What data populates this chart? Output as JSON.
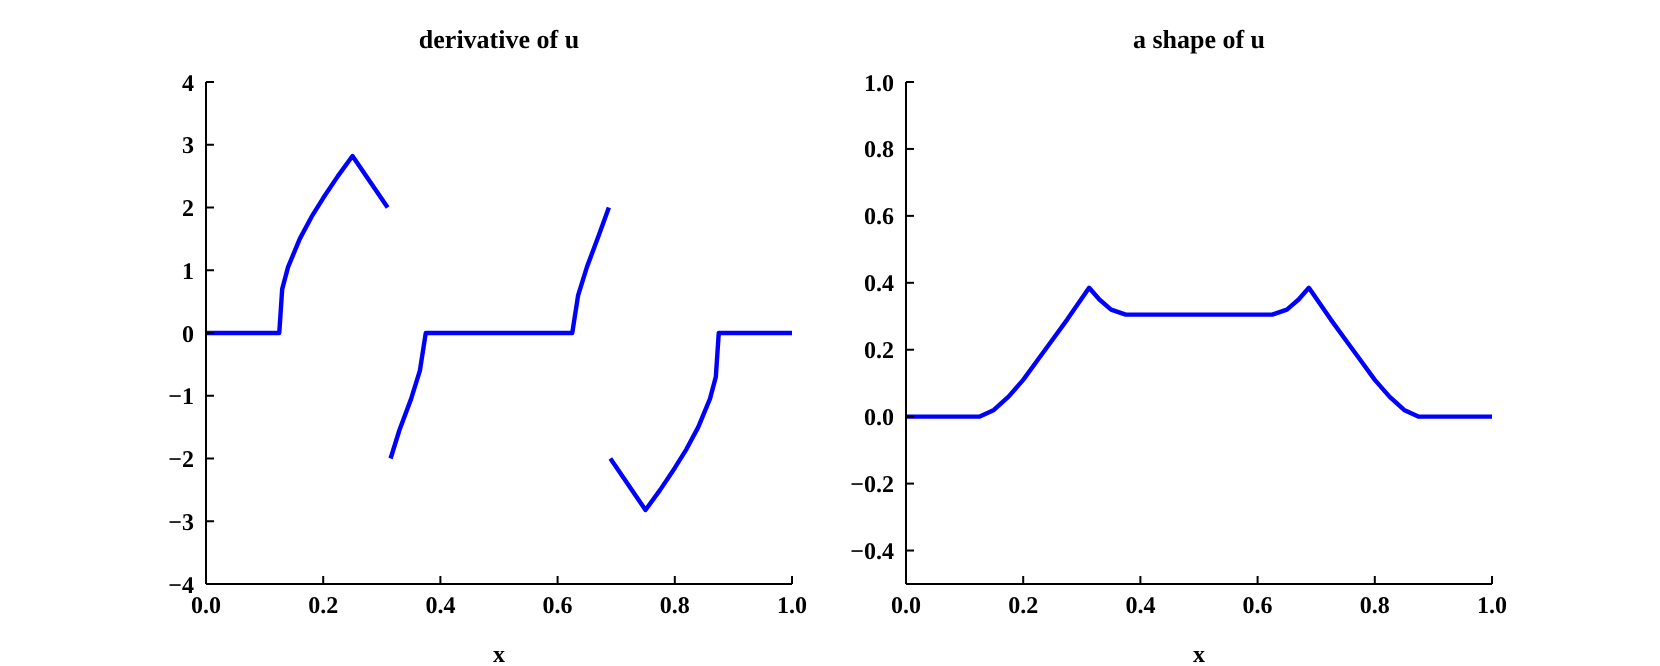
{
  "chart_data": [
    {
      "type": "line",
      "title": "derivative of u",
      "xlabel": "x",
      "xlim": [
        0,
        1
      ],
      "xticks": [
        {
          "value": 0,
          "label": "0.0"
        },
        {
          "value": 0.2,
          "label": "0.2"
        },
        {
          "value": 0.4,
          "label": "0.4"
        },
        {
          "value": 0.6,
          "label": "0.6"
        },
        {
          "value": 0.8,
          "label": "0.8"
        },
        {
          "value": 1,
          "label": "1.0"
        }
      ],
      "ylim": [
        -4,
        4
      ],
      "yticks": [
        -4,
        -3,
        -2,
        -1,
        0,
        1,
        2,
        3,
        4
      ],
      "grid": false,
      "legend": false,
      "marker": "none",
      "line_style": "solid",
      "series": [
        {
          "color": "#0000ff",
          "x": [
            0,
            0.125,
            0.13,
            0.14,
            0.16,
            0.18,
            0.2,
            0.225,
            0.25,
            0.31,
            0.3125,
            0.315,
            0.33,
            0.35,
            0.365,
            0.375,
            0.625,
            0.635,
            0.65,
            0.67,
            0.6875,
            0.688,
            0.69,
            0.75,
            0.775,
            0.8,
            0.82,
            0.84,
            0.86,
            0.87,
            0.875,
            1
          ],
          "values": [
            0,
            0,
            0.7,
            1.05,
            1.5,
            1.85,
            2.15,
            2.5,
            2.82,
            2.0,
            null,
            -2.0,
            -1.55,
            -1.05,
            -0.6,
            0,
            0,
            0.6,
            1.05,
            1.55,
            2.0,
            null,
            -2.0,
            -2.82,
            -2.5,
            -2.15,
            -1.85,
            -1.5,
            -1.05,
            -0.7,
            0,
            0
          ]
        }
      ]
    },
    {
      "type": "line",
      "title": "a shape of u",
      "xlabel": "x",
      "xlim": [
        0,
        1
      ],
      "xticks": [
        {
          "value": 0,
          "label": "0.0"
        },
        {
          "value": 0.2,
          "label": "0.2"
        },
        {
          "value": 0.4,
          "label": "0.4"
        },
        {
          "value": 0.6,
          "label": "0.6"
        },
        {
          "value": 0.8,
          "label": "0.8"
        },
        {
          "value": 1,
          "label": "1.0"
        }
      ],
      "ylim": [
        -0.5,
        1
      ],
      "yticks": [
        {
          "value": -0.4,
          "label": "−0.4"
        },
        {
          "value": -0.2,
          "label": "−0.2"
        },
        {
          "value": 0,
          "label": "0.0"
        },
        {
          "value": 0.2,
          "label": "0.2"
        },
        {
          "value": 0.4,
          "label": "0.4"
        },
        {
          "value": 0.6,
          "label": "0.6"
        },
        {
          "value": 0.8,
          "label": "0.8"
        },
        {
          "value": 1,
          "label": "1.0"
        }
      ],
      "grid": false,
      "legend": false,
      "marker": "none",
      "line_style": "solid",
      "series": [
        {
          "color": "#0000ff",
          "x": [
            0,
            0.125,
            0.15,
            0.175,
            0.2,
            0.225,
            0.25,
            0.275,
            0.3125,
            0.33,
            0.35,
            0.375,
            0.625,
            0.65,
            0.67,
            0.6875,
            0.725,
            0.75,
            0.775,
            0.8,
            0.825,
            0.85,
            0.875,
            1
          ],
          "values": [
            0,
            0,
            0.02,
            0.06,
            0.11,
            0.17,
            0.23,
            0.29,
            0.385,
            0.35,
            0.32,
            0.305,
            0.305,
            0.32,
            0.35,
            0.385,
            0.29,
            0.23,
            0.17,
            0.11,
            0.06,
            0.02,
            0,
            0
          ]
        }
      ]
    }
  ]
}
